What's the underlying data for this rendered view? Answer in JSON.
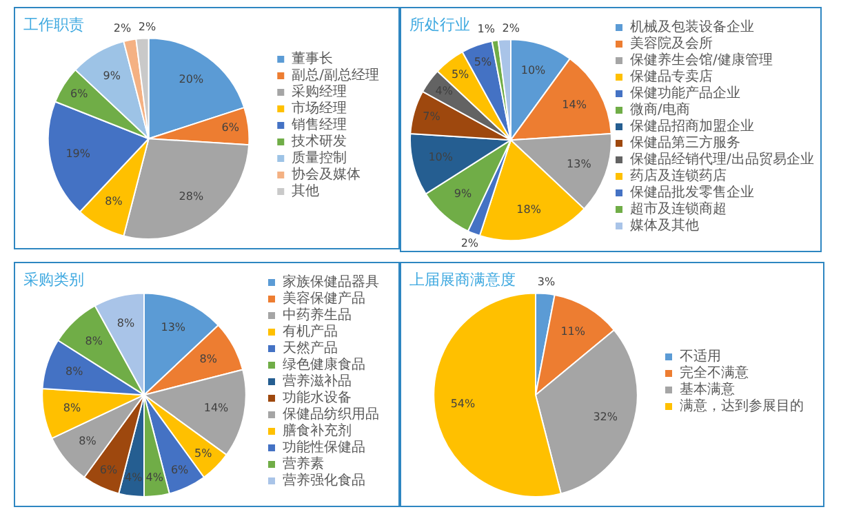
{
  "chart_data": [
    {
      "type": "pie",
      "title": "工作职责",
      "legend": "right",
      "categories": [
        "董事长",
        "副总/副总经理",
        "采购经理",
        "市场经理",
        "销售经理",
        "技术研发",
        "质量控制",
        "协会及媒体",
        "其他"
      ],
      "values": [
        20,
        6,
        28,
        8,
        19,
        6,
        9,
        2,
        2
      ],
      "value_labels": [
        "20%",
        "6%",
        "28%",
        "8%",
        "19%",
        "6%",
        "9%",
        "2%",
        "2%"
      ],
      "colors": [
        "#5b9bd5",
        "#ed7d31",
        "#a5a5a5",
        "#ffc000",
        "#4472c4",
        "#70ad47",
        "#9dc3e6",
        "#f4b183",
        "#c9c9c9"
      ]
    },
    {
      "type": "pie",
      "title": "所处行业",
      "legend": "right",
      "categories": [
        "机械及包装设备企业",
        "美容院及会所",
        "保健养生会馆/健康管理",
        "保健品专卖店",
        "保健功能产品企业",
        "微商/电商",
        "保健品招商加盟企业",
        "保健品第三方服务",
        "保健品经销代理/出品贸易企业",
        "药店及连锁药店",
        "保健品批发零售企业",
        "超市及连锁商超",
        "媒体及其他"
      ],
      "values": [
        10,
        14,
        13,
        18,
        2,
        9,
        10,
        7,
        4,
        5,
        5,
        1,
        2
      ],
      "value_labels": [
        "10%",
        "14%",
        "13%",
        "18%",
        "2%",
        "9%",
        "10%",
        "7%",
        "4%",
        "5%",
        "5%",
        "1%",
        "2%"
      ],
      "colors": [
        "#5b9bd5",
        "#ed7d31",
        "#a5a5a5",
        "#ffc000",
        "#4472c4",
        "#70ad47",
        "#255e91",
        "#9e480e",
        "#636363",
        "#ffc000",
        "#4472c4",
        "#70ad47",
        "#a9c4e8"
      ]
    },
    {
      "type": "pie",
      "title": "采购类别",
      "legend": "right",
      "categories": [
        "家族保健品器具",
        "美容保健产品",
        "中药养生品",
        "有机产品",
        "天然产品",
        "绿色健康食品",
        "营养滋补品",
        "功能水设备",
        "保健品纺织用品",
        "膳食补充剂",
        "功能性保健品",
        "营养素",
        "营养强化食品"
      ],
      "values": [
        13,
        8,
        14,
        5,
        6,
        4,
        4,
        6,
        8,
        8,
        8,
        8,
        8
      ],
      "value_labels": [
        "13%",
        "8%",
        "14%",
        "5%",
        "6%",
        "4%",
        "4%",
        "6%",
        "8%",
        "8%",
        "8%",
        "8%",
        "8%"
      ],
      "colors": [
        "#5b9bd5",
        "#ed7d31",
        "#a5a5a5",
        "#ffc000",
        "#4472c4",
        "#70ad47",
        "#255e91",
        "#9e480e",
        "#a5a5a5",
        "#ffc000",
        "#4472c4",
        "#70ad47",
        "#a9c4e8"
      ]
    },
    {
      "type": "pie",
      "title": "上届展商满意度",
      "legend": "right",
      "categories": [
        "不适用",
        "完全不满意",
        "基本满意",
        "满意，达到参展目的"
      ],
      "values": [
        3,
        11,
        32,
        54
      ],
      "value_labels": [
        "3%",
        "11%",
        "32%",
        "54%"
      ],
      "colors": [
        "#5b9bd5",
        "#ed7d31",
        "#a5a5a5",
        "#ffc000"
      ]
    }
  ]
}
